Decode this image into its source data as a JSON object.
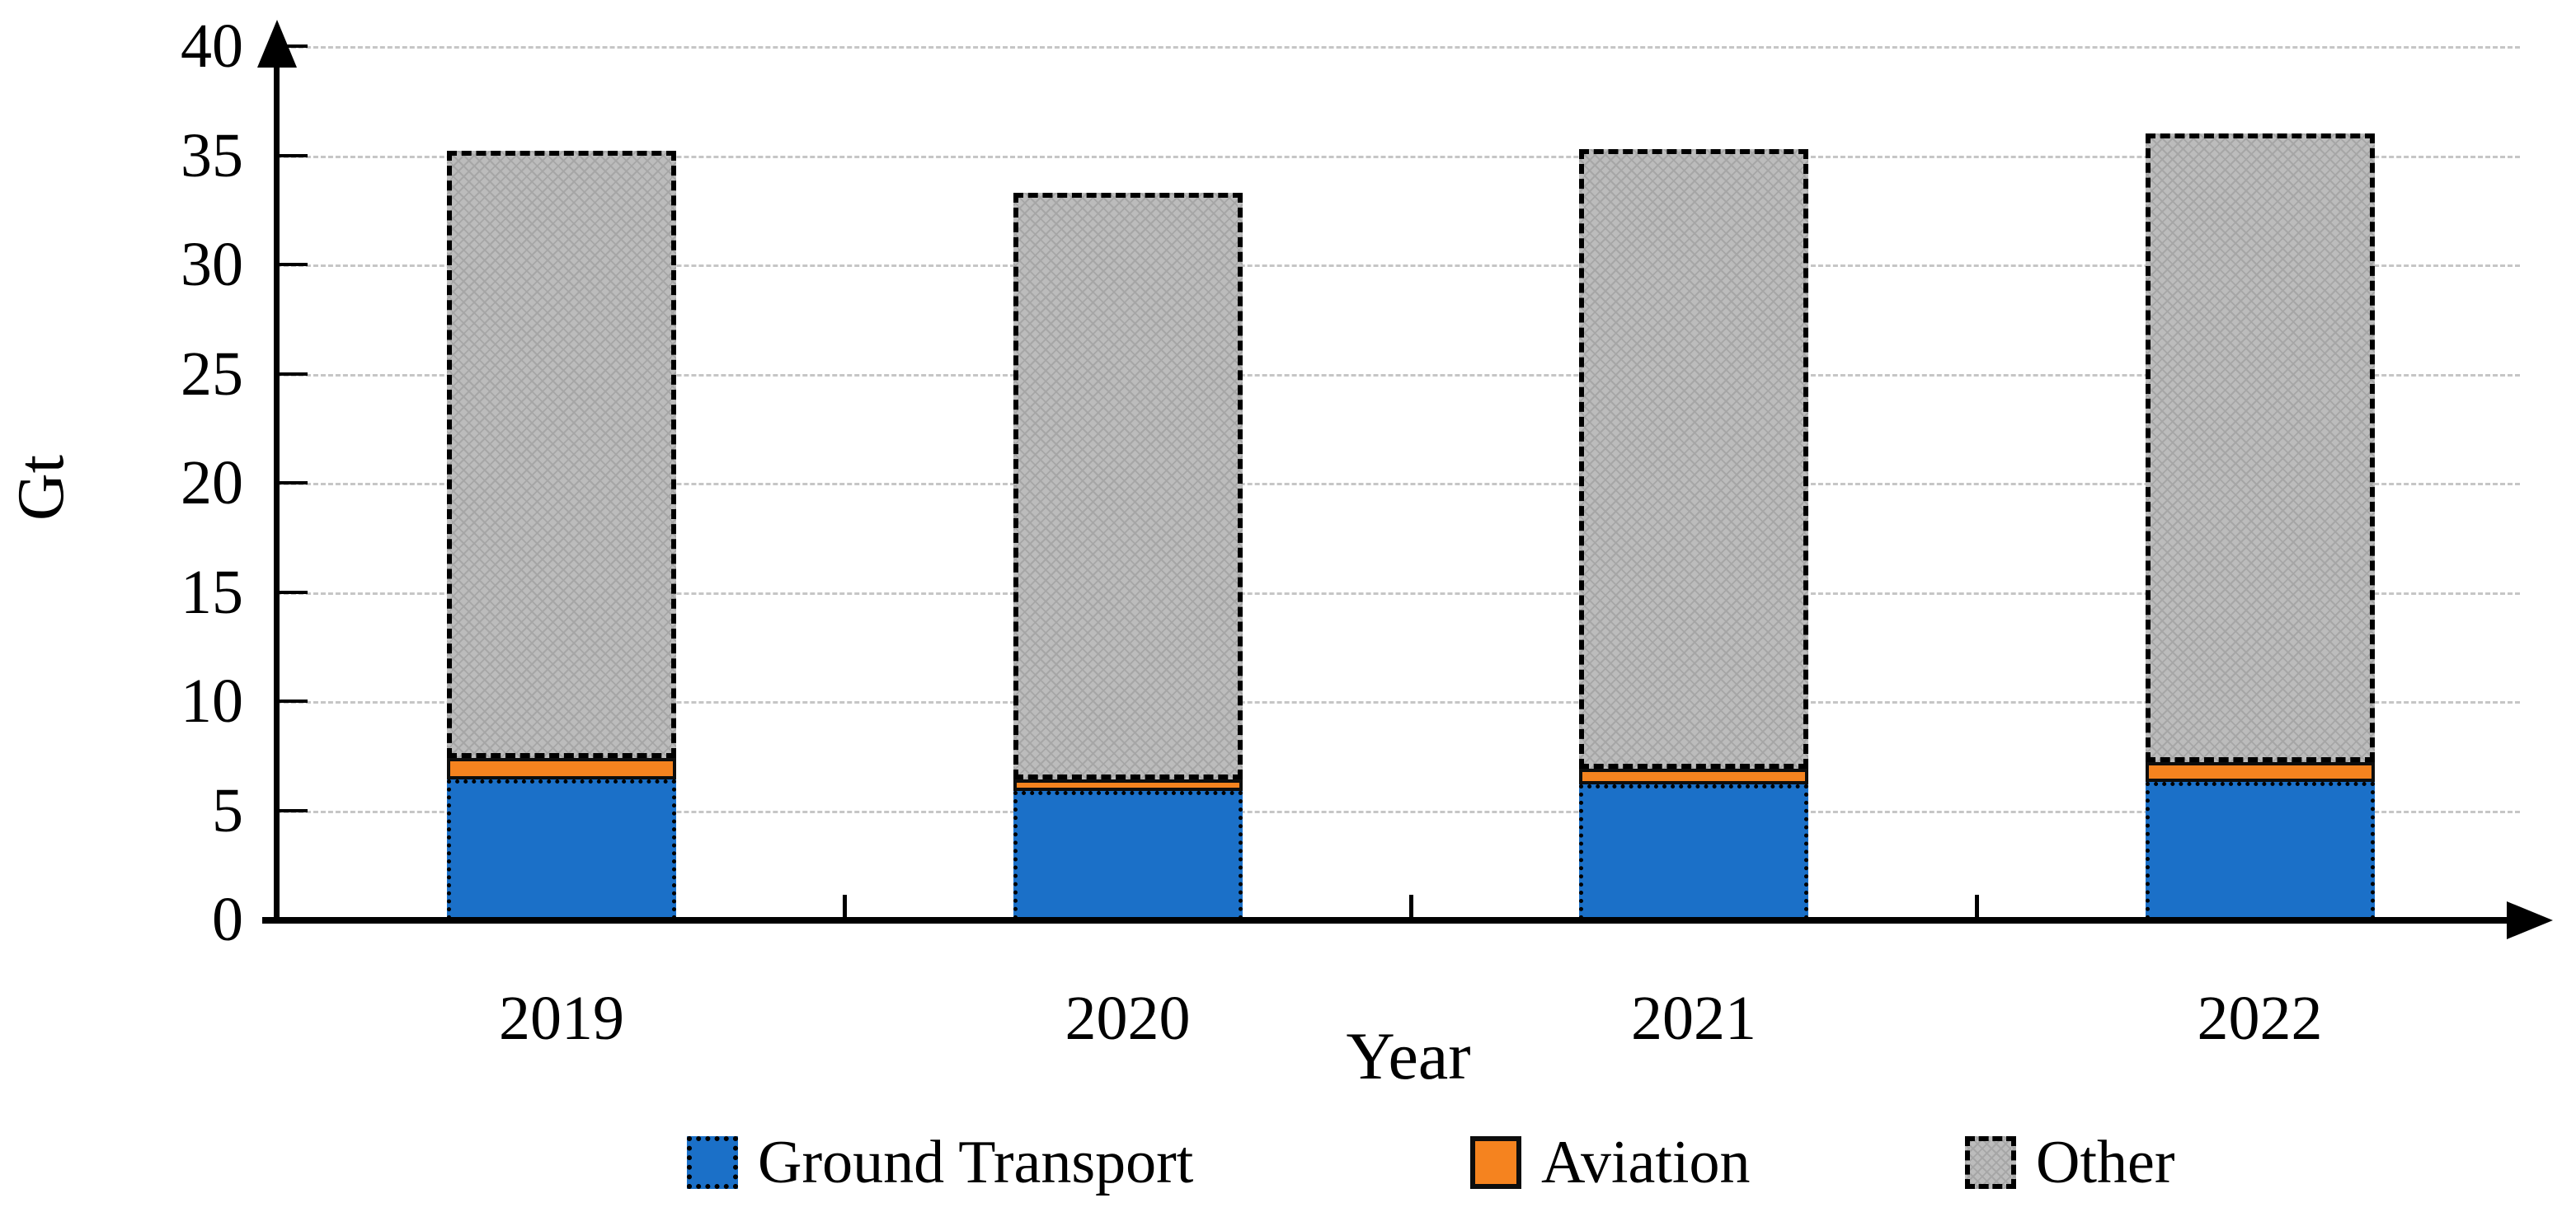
{
  "chart_data": {
    "type": "bar",
    "stacked": true,
    "title": "",
    "xlabel": "Year",
    "ylabel": "Gt",
    "categories": [
      "2019",
      "2020",
      "2021",
      "2022"
    ],
    "series": [
      {
        "name": "Ground Transport",
        "color": "#1b70c8",
        "border_style": "dotted",
        "values": [
          6.4,
          5.9,
          6.2,
          6.3
        ]
      },
      {
        "name": "Aviation",
        "color": "#f5831f",
        "border_style": "solid",
        "values": [
          1.0,
          0.5,
          0.7,
          0.9
        ]
      },
      {
        "name": "Other",
        "color": "#bcbcbc",
        "border_style": "dashed",
        "values": [
          27.8,
          26.9,
          28.4,
          28.8
        ]
      }
    ],
    "totals": [
      35.2,
      33.3,
      35.3,
      36.0
    ],
    "ylim": [
      0,
      40
    ],
    "ytick_interval": 5,
    "yticks": [
      "0",
      "5",
      "10",
      "15",
      "20",
      "25",
      "30",
      "35",
      "40"
    ],
    "grid": true,
    "gridline_color": "#c6c6c6",
    "axis_color": "#000000",
    "legend_position": "bottom"
  }
}
